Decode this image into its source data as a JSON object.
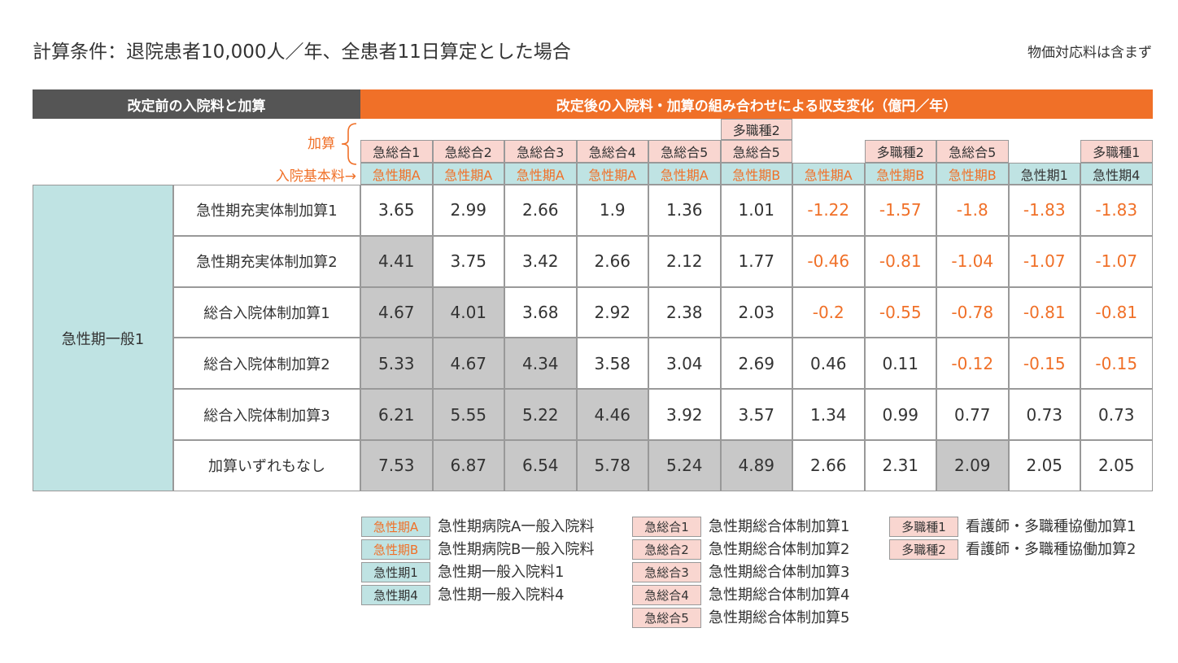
{
  "header": {
    "title": "計算条件：退院患者10,000人／年、全患者11日算定とした場合",
    "note": "物価対応料は含まず"
  },
  "table": {
    "before_label": "改定前の入院料と加算",
    "after_label": "改定後の入院料・加算の組み合わせによる収支変化（億円／年）",
    "kasan_label": "加算",
    "base_label": "入院基本料→",
    "group_label": "急性期一般1",
    "columns": [
      {
        "top": "",
        "kasan": "急総合1",
        "base": "急性期A",
        "base_style": "orange"
      },
      {
        "top": "",
        "kasan": "急総合2",
        "base": "急性期A",
        "base_style": "orange"
      },
      {
        "top": "",
        "kasan": "急総合3",
        "base": "急性期A",
        "base_style": "orange"
      },
      {
        "top": "",
        "kasan": "急総合4",
        "base": "急性期A",
        "base_style": "orange"
      },
      {
        "top": "",
        "kasan": "急総合5",
        "base": "急性期A",
        "base_style": "orange"
      },
      {
        "top": "多職種2",
        "kasan": "急総合5",
        "base": "急性期B",
        "base_style": "orange"
      },
      {
        "top": "",
        "kasan": "",
        "base": "急性期A",
        "base_style": "orange"
      },
      {
        "top": "",
        "kasan": "多職種2",
        "base": "急性期B",
        "base_style": "orange"
      },
      {
        "top": "",
        "kasan": "急総合5",
        "base": "急性期B",
        "base_style": "orange"
      },
      {
        "top": "",
        "kasan": "",
        "base": "急性期1",
        "base_style": "dark"
      },
      {
        "top": "",
        "kasan": "多職種1",
        "base": "急性期4",
        "base_style": "dark"
      }
    ],
    "rows": [
      {
        "label": "急性期充実体制加算1",
        "values": [
          "3.65",
          "2.99",
          "2.66",
          "1.9",
          "1.36",
          "1.01",
          "-1.22",
          "-1.57",
          "-1.8",
          "-1.83",
          "-1.83"
        ],
        "shaded": []
      },
      {
        "label": "急性期充実体制加算2",
        "values": [
          "4.41",
          "3.75",
          "3.42",
          "2.66",
          "2.12",
          "1.77",
          "-0.46",
          "-0.81",
          "-1.04",
          "-1.07",
          "-1.07"
        ],
        "shaded": [
          0
        ]
      },
      {
        "label": "総合入院体制加算1",
        "values": [
          "4.67",
          "4.01",
          "3.68",
          "2.92",
          "2.38",
          "2.03",
          "-0.2",
          "-0.55",
          "-0.78",
          "-0.81",
          "-0.81"
        ],
        "shaded": [
          0,
          1
        ]
      },
      {
        "label": "総合入院体制加算2",
        "values": [
          "5.33",
          "4.67",
          "4.34",
          "3.58",
          "3.04",
          "2.69",
          "0.46",
          "0.11",
          "-0.12",
          "-0.15",
          "-0.15"
        ],
        "shaded": [
          0,
          1,
          2
        ]
      },
      {
        "label": "総合入院体制加算3",
        "values": [
          "6.21",
          "5.55",
          "5.22",
          "4.46",
          "3.92",
          "3.57",
          "1.34",
          "0.99",
          "0.77",
          "0.73",
          "0.73"
        ],
        "shaded": [
          0,
          1,
          2,
          3
        ]
      },
      {
        "label": "加算いずれもなし",
        "values": [
          "7.53",
          "6.87",
          "6.54",
          "5.78",
          "5.24",
          "4.89",
          "2.66",
          "2.31",
          "2.09",
          "2.05",
          "2.05"
        ],
        "shaded": [
          0,
          1,
          2,
          3,
          4,
          5,
          8
        ]
      }
    ]
  },
  "legend": {
    "groups": [
      [
        {
          "code": "急性期A",
          "desc": "急性期病院A一般入院料",
          "style": "teal-o"
        },
        {
          "code": "急性期B",
          "desc": "急性期病院B一般入院料",
          "style": "teal-o"
        },
        {
          "code": "急性期1",
          "desc": "急性期一般入院料1",
          "style": "teal-d"
        },
        {
          "code": "急性期4",
          "desc": "急性期一般入院料4",
          "style": "teal-d"
        }
      ],
      [
        {
          "code": "急総合1",
          "desc": "急性期総合体制加算1",
          "style": "pink"
        },
        {
          "code": "急総合2",
          "desc": "急性期総合体制加算2",
          "style": "pink"
        },
        {
          "code": "急総合3",
          "desc": "急性期総合体制加算3",
          "style": "pink"
        },
        {
          "code": "急総合4",
          "desc": "急性期総合体制加算4",
          "style": "pink"
        },
        {
          "code": "急総合5",
          "desc": "急性期総合体制加算5",
          "style": "pink"
        }
      ],
      [
        {
          "code": "多職種1",
          "desc": "看護師・多職種協働加算1",
          "style": "pink"
        },
        {
          "code": "多職種2",
          "desc": "看護師・多職種協働加算2",
          "style": "pink"
        }
      ]
    ]
  },
  "colors": {
    "orange": "#f07028",
    "dark_gray": "#555555",
    "teal": "#bfe3e3",
    "pink": "#f9d6d0",
    "shaded": "#c8c8c8"
  }
}
